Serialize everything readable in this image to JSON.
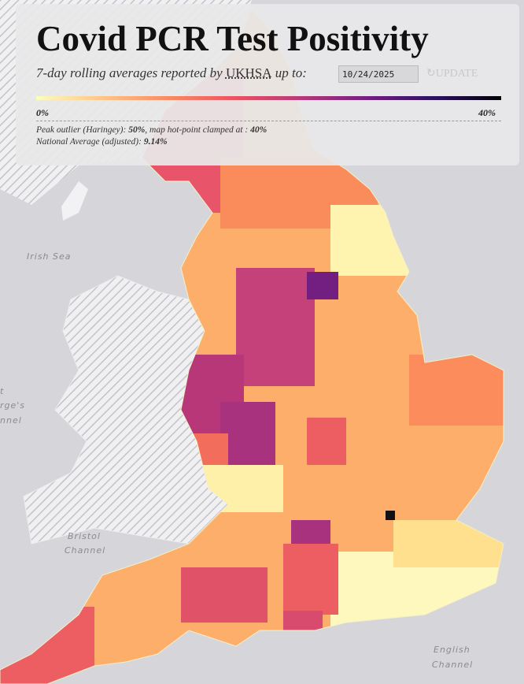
{
  "header": {
    "title": "Covid PCR Test Positivity",
    "subtitle_before": "7-day rolling averages reported by",
    "source": "UKHSA",
    "subtitle_after": "up to:",
    "date": "10/24/2025",
    "button": "UPDATE"
  },
  "legend": {
    "min_label": "0%",
    "max_label": "40%"
  },
  "notes": {
    "peak_prefix": "Peak outlier (Haringey): ",
    "peak_value": "50%",
    "peak_middle": ", map hot-point clamped at : ",
    "clamp_value": "40%",
    "average_prefix": "National Average (adjusted): ",
    "average_value": "9.14%"
  },
  "map_labels": {
    "irish_sea": "Irish Sea",
    "bristol": "Bristol",
    "bristol_channel": "Channel",
    "english": "English",
    "english_channel": "Channel",
    "edge_1": "t",
    "edge_2": "rge's",
    "edge_3": "nnel"
  }
}
